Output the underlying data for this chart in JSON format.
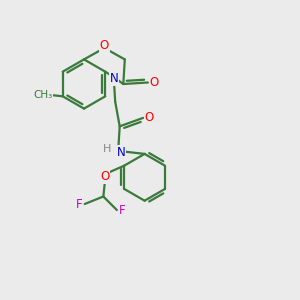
{
  "background_color": "#ebebeb",
  "bond_color": "#3a7a3a",
  "atom_colors": {
    "O": "#ff0000",
    "N": "#0000cc",
    "F": "#cc00cc",
    "C": "#000000",
    "H": "#888888"
  },
  "figsize": [
    3.0,
    3.0
  ],
  "dpi": 100,
  "lw": 1.6,
  "fontsize": 8.5
}
